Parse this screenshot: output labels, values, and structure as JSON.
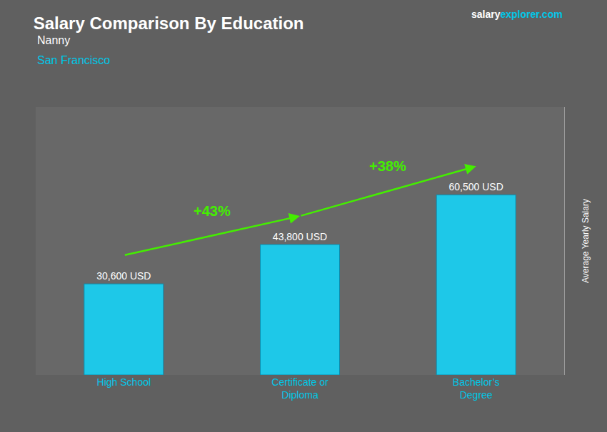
{
  "chart_data": {
    "type": "bar",
    "title": "Salary Comparison By Education",
    "subtitle": [
      "Nanny",
      "San Francisco"
    ],
    "source": [
      "salary",
      "explorer",
      ".com"
    ],
    "ylabel": "Average Yearly Salary",
    "categories": [
      "High School",
      "Certificate or\nDiploma",
      "Bachelor’s\nDegree"
    ],
    "values": [
      30600,
      43800,
      60500
    ],
    "value_labels": [
      "30,600 USD",
      "43,800 USD",
      "60,500 USD"
    ],
    "data_labels": true,
    "annotations": [
      "+43%",
      "+38%"
    ],
    "color": "#1ec8e8",
    "ylim": [
      0,
      90000
    ],
    "yticks": [],
    "grid": false,
    "tick_labels": "x"
  }
}
